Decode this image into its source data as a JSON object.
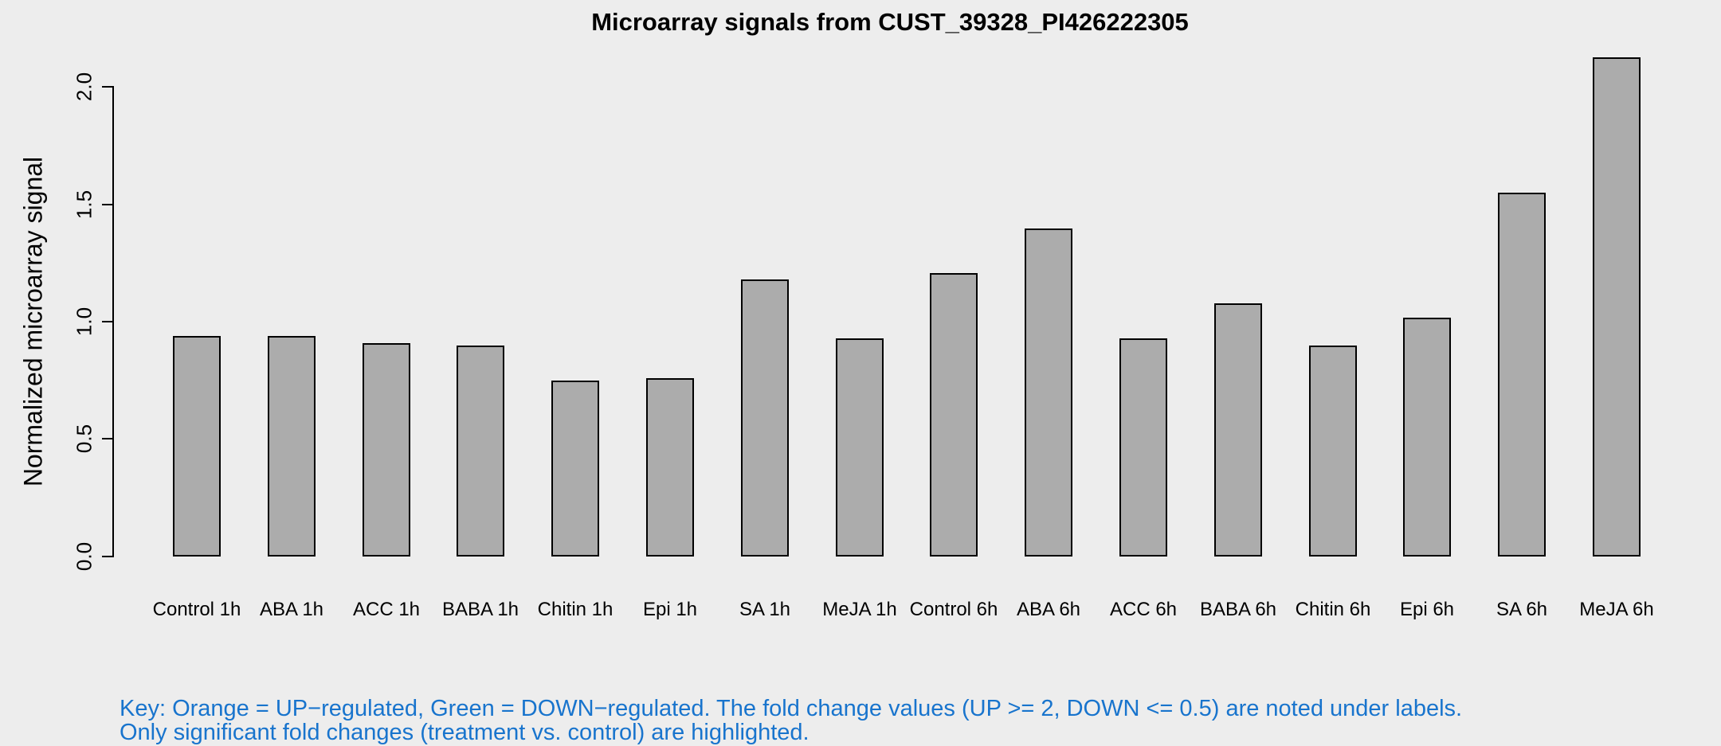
{
  "chart_data": {
    "type": "bar",
    "title": "Microarray signals from CUST_39328_PI426222305",
    "xlabel": "",
    "ylabel": "Normalized microarray signal",
    "categories": [
      "Control 1h",
      "ABA 1h",
      "ACC 1h",
      "BABA 1h",
      "Chitin 1h",
      "Epi 1h",
      "SA 1h",
      "MeJA 1h",
      "Control 6h",
      "ABA 6h",
      "ACC 6h",
      "BABA 6h",
      "Chitin 6h",
      "Epi 6h",
      "SA 6h",
      "MeJA 6h"
    ],
    "values": [
      0.94,
      0.94,
      0.91,
      0.9,
      0.75,
      0.76,
      1.18,
      0.93,
      1.21,
      1.4,
      0.93,
      1.08,
      0.9,
      1.02,
      1.55,
      2.13
    ],
    "ylim": [
      0.0,
      2.0
    ],
    "yticks": [
      0.0,
      0.5,
      1.0,
      1.5,
      2.0
    ],
    "ytick_labels": [
      "0.0",
      "0.5",
      "1.0",
      "1.5",
      "2.0"
    ],
    "grid": false,
    "legend": "none",
    "bar_fill": "#acacac",
    "bar_border": "#000000",
    "background": "#ededed",
    "axis_color": "#000000"
  },
  "footnote": {
    "line1": "Key: Orange = UP−regulated, Green = DOWN−regulated. The fold change values (UP >= 2, DOWN <= 0.5) are noted under labels.",
    "line2": "Only significant fold changes (treatment vs. control) are highlighted.",
    "color": "#1874cd"
  }
}
